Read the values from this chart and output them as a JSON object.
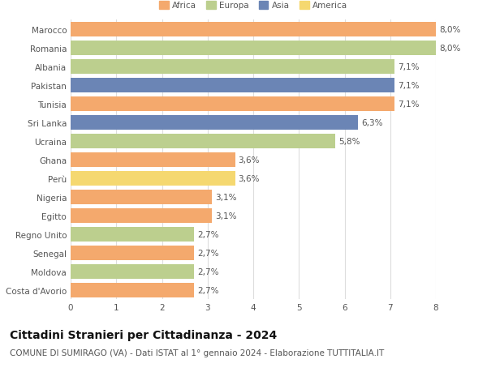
{
  "countries": [
    "Marocco",
    "Romania",
    "Albania",
    "Pakistan",
    "Tunisia",
    "Sri Lanka",
    "Ucraina",
    "Ghana",
    "Perù",
    "Nigeria",
    "Egitto",
    "Regno Unito",
    "Senegal",
    "Moldova",
    "Costa d'Avorio"
  ],
  "values": [
    8.0,
    8.0,
    7.1,
    7.1,
    7.1,
    6.3,
    5.8,
    3.6,
    3.6,
    3.1,
    3.1,
    2.7,
    2.7,
    2.7,
    2.7
  ],
  "labels": [
    "8,0%",
    "8,0%",
    "7,1%",
    "7,1%",
    "7,1%",
    "6,3%",
    "5,8%",
    "3,6%",
    "3,6%",
    "3,1%",
    "3,1%",
    "2,7%",
    "2,7%",
    "2,7%",
    "2,7%"
  ],
  "continent": [
    "Africa",
    "Europa",
    "Europa",
    "Asia",
    "Africa",
    "Asia",
    "Europa",
    "Africa",
    "America",
    "Africa",
    "Africa",
    "Europa",
    "Africa",
    "Europa",
    "Africa"
  ],
  "colors": {
    "Africa": "#F4A96D",
    "Europa": "#BCCF8E",
    "Asia": "#6B85B5",
    "America": "#F5D870"
  },
  "legend_order": [
    "Africa",
    "Europa",
    "Asia",
    "America"
  ],
  "title": "Cittadini Stranieri per Cittadinanza - 2024",
  "subtitle": "COMUNE DI SUMIRAGO (VA) - Dati ISTAT al 1° gennaio 2024 - Elaborazione TUTTITALIA.IT",
  "xlim": [
    0,
    8
  ],
  "xticks": [
    0,
    1,
    2,
    3,
    4,
    5,
    6,
    7,
    8
  ],
  "bg_color": "#ffffff",
  "grid_color": "#dddddd",
  "bar_height": 0.78,
  "label_fontsize": 7.5,
  "tick_fontsize": 7.5,
  "title_fontsize": 10,
  "subtitle_fontsize": 7.5
}
